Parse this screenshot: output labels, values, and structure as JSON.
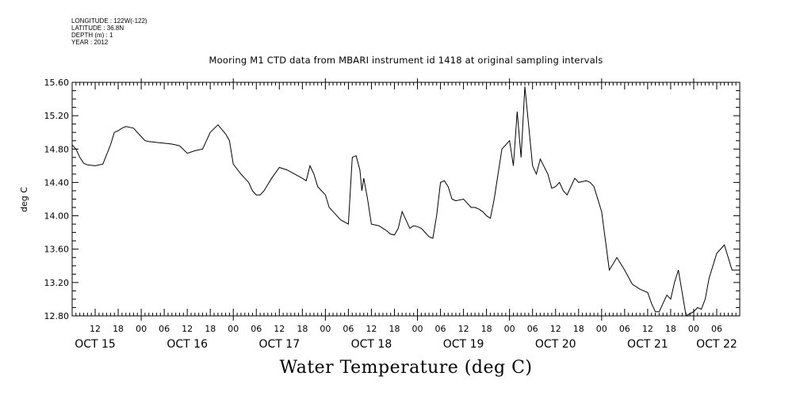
{
  "meta": {
    "longitude": "LONGITUDE : 122W(-122)",
    "latitude": "LATITUDE : 36.8N",
    "depth": "DEPTH (m) : 1",
    "year": "YEAR : 2012"
  },
  "chart_data": {
    "type": "line",
    "title": "Mooring M1 CTD data from MBARI instrument id 1418 at original sampling intervals",
    "subtitle": "Water Temperature (deg C)",
    "ylabel": "deg C",
    "xlabel": "",
    "ylim": [
      12.8,
      15.6
    ],
    "xlim": [
      6,
      180
    ],
    "x_unit": "hours since Oct 15 2012 00:00",
    "y_ticks": [
      "12.80",
      "13.20",
      "13.60",
      "14.00",
      "14.40",
      "14.80",
      "15.20",
      "15.60"
    ],
    "hour_ticks": [
      "12",
      "18",
      "00",
      "06",
      "12",
      "18",
      "00",
      "06",
      "12",
      "18",
      "00",
      "06",
      "12",
      "18",
      "00",
      "06",
      "12",
      "18",
      "00",
      "06",
      "12",
      "18",
      "00",
      "06",
      "12",
      "18",
      "00",
      "06"
    ],
    "day_labels": [
      "OCT 15",
      "OCT 16",
      "OCT 17",
      "OCT 18",
      "OCT 19",
      "OCT 20",
      "OCT 21",
      "OCT 22"
    ],
    "grid": false,
    "series": [
      {
        "name": "",
        "color": "#000000",
        "x": [
          6,
          7,
          8,
          9,
          10,
          12,
          14,
          16,
          17,
          18,
          19,
          20,
          22,
          24,
          25,
          26,
          28,
          30,
          32,
          34,
          36,
          38,
          40,
          41,
          42,
          44,
          46,
          47,
          48,
          50,
          51,
          52,
          53,
          54,
          55,
          56,
          58,
          60,
          62,
          64,
          66,
          67,
          68,
          69,
          70,
          71,
          72,
          73,
          74,
          75,
          76,
          78,
          79,
          80,
          81,
          81.5,
          82,
          83,
          84,
          86,
          87,
          88,
          89,
          90,
          91,
          92,
          94,
          95,
          96,
          97,
          98,
          99,
          100,
          101,
          102,
          103,
          104,
          105,
          106,
          108,
          109,
          110,
          111,
          112,
          113,
          114,
          115,
          116,
          118,
          120,
          121,
          122,
          123,
          124,
          126,
          127,
          128,
          130,
          131,
          132,
          133,
          134,
          135,
          136,
          137,
          138,
          140,
          141,
          142,
          144,
          146,
          148,
          150,
          152,
          154,
          156,
          157,
          158,
          159,
          160,
          161,
          162,
          163,
          164,
          166,
          168,
          169,
          170,
          171,
          172,
          174,
          176,
          178,
          180
        ],
        "y": [
          14.85,
          14.8,
          14.7,
          14.63,
          14.61,
          14.6,
          14.62,
          14.85,
          15.0,
          15.02,
          15.05,
          15.07,
          15.05,
          14.95,
          14.9,
          14.89,
          14.88,
          14.87,
          14.86,
          14.84,
          14.75,
          14.78,
          14.8,
          14.9,
          15.0,
          15.09,
          14.98,
          14.9,
          14.62,
          14.5,
          14.45,
          14.4,
          14.3,
          14.25,
          14.25,
          14.3,
          14.45,
          14.58,
          14.55,
          14.5,
          14.45,
          14.42,
          14.6,
          14.5,
          14.35,
          14.3,
          14.25,
          14.1,
          14.05,
          14.0,
          13.95,
          13.9,
          14.7,
          14.72,
          14.55,
          14.3,
          14.45,
          14.2,
          13.9,
          13.88,
          13.85,
          13.82,
          13.78,
          13.77,
          13.85,
          14.05,
          13.85,
          13.88,
          13.87,
          13.85,
          13.8,
          13.75,
          13.73,
          14.0,
          14.4,
          14.42,
          14.35,
          14.2,
          14.18,
          14.2,
          14.15,
          14.1,
          14.1,
          14.08,
          14.05,
          14.0,
          13.97,
          14.2,
          14.8,
          14.9,
          14.6,
          15.25,
          14.7,
          15.55,
          14.6,
          14.5,
          14.68,
          14.5,
          14.33,
          14.35,
          14.4,
          14.3,
          14.25,
          14.35,
          14.45,
          14.4,
          14.42,
          14.4,
          14.35,
          14.05,
          13.35,
          13.5,
          13.35,
          13.18,
          13.12,
          13.08,
          12.95,
          12.85,
          12.85,
          12.95,
          13.05,
          13.0,
          13.2,
          13.35,
          12.8,
          12.85,
          12.9,
          12.88,
          13.0,
          13.25,
          13.55,
          13.65,
          13.35,
          13.35
        ]
      }
    ]
  }
}
